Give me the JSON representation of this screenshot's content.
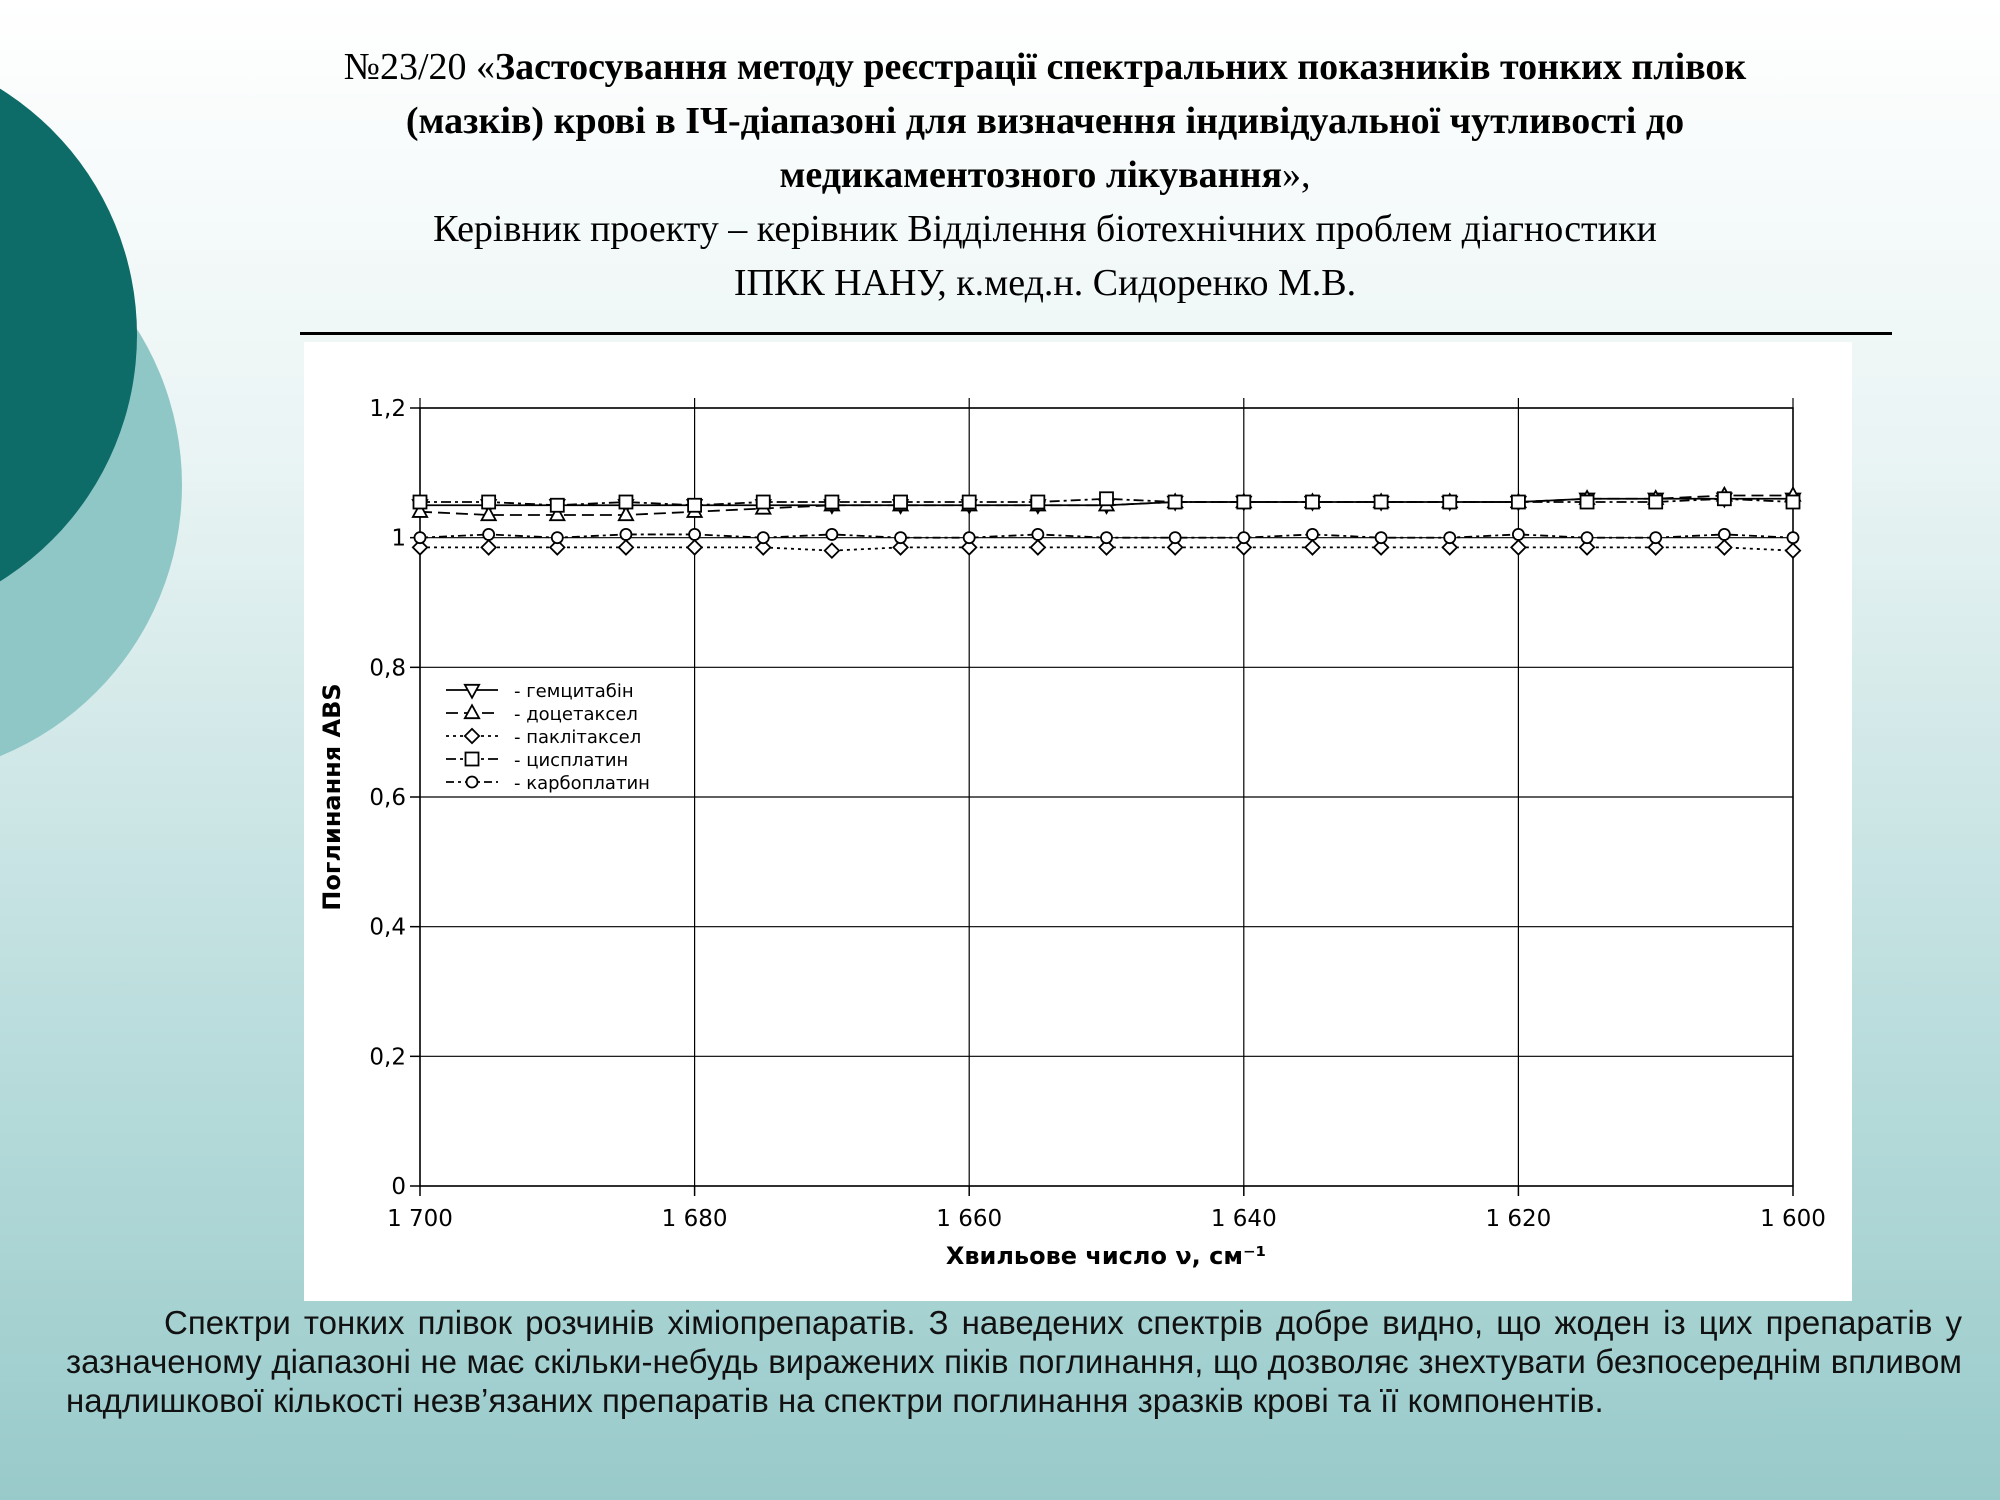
{
  "header": {
    "title": {
      "number": "№23/20 «",
      "lines": [
        "Застосування методу реєстрації спектральних показників тонких плівок",
        "(мазків) крові в ІЧ-діапазоні для визначення індивідуальної чутливості до",
        "медикаментозного лікування"
      ],
      "end": "»,"
    },
    "subtitle": [
      "Керівник проекту – керівник Відділення біотехнічних проблем діагностики",
      "ІПКК НАНУ, к.мед.н. Сидоренко М.В."
    ]
  },
  "chart_data": {
    "type": "line",
    "x_label": "Хвильове число ν, см⁻¹",
    "y_label": "Поглинання ABS",
    "grid": true,
    "x": [
      1700,
      1695,
      1690,
      1685,
      1680,
      1675,
      1670,
      1665,
      1660,
      1655,
      1650,
      1645,
      1640,
      1635,
      1630,
      1625,
      1620,
      1615,
      1610,
      1605,
      1600
    ],
    "xlim": [
      1700,
      1600
    ],
    "xticks": [
      {
        "value": 1700,
        "label": "1 700"
      },
      {
        "value": 1680,
        "label": "1 680"
      },
      {
        "value": 1660,
        "label": "1 660"
      },
      {
        "value": 1640,
        "label": "1 640"
      },
      {
        "value": 1620,
        "label": "1 620"
      },
      {
        "value": 1600,
        "label": "1 600"
      }
    ],
    "ylim": [
      0,
      1.2
    ],
    "yticks": [
      0,
      {
        "value": 0.2,
        "label": "0,2"
      },
      {
        "value": 0.4,
        "label": "0,4"
      },
      {
        "value": 0.6,
        "label": "0,6"
      },
      {
        "value": 0.8,
        "label": "0,8"
      },
      1,
      {
        "value": 1.2,
        "label": "1,2"
      }
    ],
    "legend": "upper left",
    "series": [
      {
        "name": "- гемцитабін",
        "color": "#000000",
        "dash": "none",
        "marker": "triangle-down",
        "values": [
          1.05,
          1.05,
          1.05,
          1.05,
          1.05,
          1.05,
          1.05,
          1.05,
          1.05,
          1.05,
          1.05,
          1.055,
          1.055,
          1.055,
          1.055,
          1.055,
          1.055,
          1.06,
          1.06,
          1.06,
          1.06
        ]
      },
      {
        "name": "- доцетаксел",
        "color": "#000000",
        "dash": "12 6",
        "marker": "triangle-up",
        "values": [
          1.04,
          1.035,
          1.035,
          1.035,
          1.04,
          1.045,
          1.05,
          1.05,
          1.05,
          1.05,
          1.05,
          1.055,
          1.055,
          1.055,
          1.055,
          1.055,
          1.055,
          1.06,
          1.06,
          1.065,
          1.065
        ]
      },
      {
        "name": "- паклітаксел",
        "color": "#000000",
        "dash": "3 4",
        "marker": "diamond",
        "values": [
          0.985,
          0.985,
          0.985,
          0.985,
          0.985,
          0.985,
          0.98,
          0.985,
          0.985,
          0.985,
          0.985,
          0.985,
          0.985,
          0.985,
          0.985,
          0.985,
          0.985,
          0.985,
          0.985,
          0.985,
          0.98
        ]
      },
      {
        "name": "- цисплатин",
        "color": "#000000",
        "dash": "10 4 3 4",
        "marker": "square",
        "values": [
          1.055,
          1.055,
          1.05,
          1.055,
          1.05,
          1.055,
          1.055,
          1.055,
          1.055,
          1.055,
          1.06,
          1.055,
          1.055,
          1.055,
          1.055,
          1.055,
          1.055,
          1.055,
          1.055,
          1.06,
          1.055
        ]
      },
      {
        "name": "- карбоплатин",
        "color": "#000000",
        "dash": "8 4 3 4",
        "marker": "circle",
        "values": [
          1.0,
          1.005,
          1.0,
          1.005,
          1.005,
          1.0,
          1.005,
          1.0,
          1.0,
          1.005,
          1.0,
          1.0,
          1.0,
          1.005,
          1.0,
          1.0,
          1.005,
          1.0,
          1.0,
          1.005,
          1.0
        ]
      }
    ]
  },
  "caption": "Спектри  тонких плівок розчинів хіміопрепаратів. З наведених спектрів добре видно, що жоден із цих препаратів у зазначеному діапазоні не має скільки-небудь виражених піків поглинання, що дозволяє знехтувати безпосереднім впливом надлишкової кількості незв’язаних  препаратів на спектри поглинання зразків крові та її компонентів."
}
